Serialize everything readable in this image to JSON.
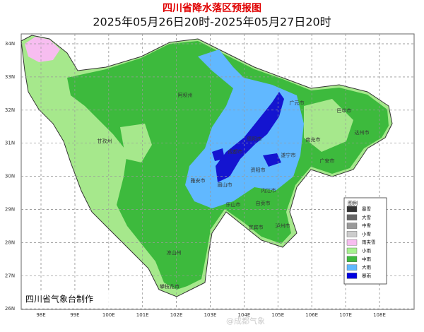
{
  "header": {
    "title": "四川省降水落区预报图",
    "subtitle": "2025年05月26日20时-2025年05月27日20时"
  },
  "axes": {
    "lat_labels": [
      "34N",
      "33N",
      "32N",
      "31N",
      "30N",
      "29N",
      "28N",
      "27N",
      "26N"
    ],
    "lon_labels": [
      "98E",
      "99E",
      "100E",
      "101E",
      "102E",
      "103E",
      "104E",
      "105E",
      "106E",
      "107E",
      "108E"
    ]
  },
  "legend": {
    "title": "图例",
    "items": [
      {
        "label": "暴雪",
        "color": "#333333"
      },
      {
        "label": "大雪",
        "color": "#666666"
      },
      {
        "label": "中雪",
        "color": "#999999"
      },
      {
        "label": "小雪",
        "color": "#cccccc"
      },
      {
        "label": "雨夹雪",
        "color": "#f7bdf0"
      },
      {
        "label": "小雨",
        "color": "#a6f28f"
      },
      {
        "label": "中雨",
        "color": "#3dba3d"
      },
      {
        "label": "大雨",
        "color": "#61b8ff"
      },
      {
        "label": "暴雨",
        "color": "#0000e1"
      }
    ]
  },
  "regions": [
    "阿坝州",
    "甘孜州",
    "广元市",
    "巴中市",
    "达州市",
    "南充市",
    "广安市",
    "遂宁市",
    "德阳市",
    "成都市",
    "资阳市",
    "雅安市",
    "眉山市",
    "乐山市",
    "内江市",
    "自贡市",
    "宜宾市",
    "泸州市",
    "凉山州",
    "攀枝花市"
  ],
  "footer": "四川省气象台制作",
  "watermark": "@成都气象"
}
